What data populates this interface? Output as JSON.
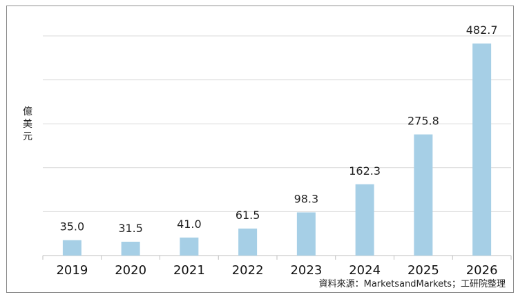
{
  "chart_data": {
    "type": "bar",
    "title": "",
    "xlabel": "",
    "ylabel": "億美元",
    "ylim": [
      0,
      500
    ],
    "grid": true,
    "categories": [
      "2019",
      "2020",
      "2021",
      "2022",
      "2023",
      "2024",
      "2025",
      "2026"
    ],
    "values": [
      35.0,
      31.5,
      41.0,
      61.5,
      98.3,
      162.3,
      275.8,
      482.7
    ],
    "value_labels": [
      "35.0",
      "31.5",
      "41.0",
      "61.5",
      "98.3",
      "162.3",
      "275.8",
      "482.7"
    ],
    "bar_color": "#a6cfe6",
    "source_note": "資料來源：MarketsandMarkets；工研院整理"
  }
}
